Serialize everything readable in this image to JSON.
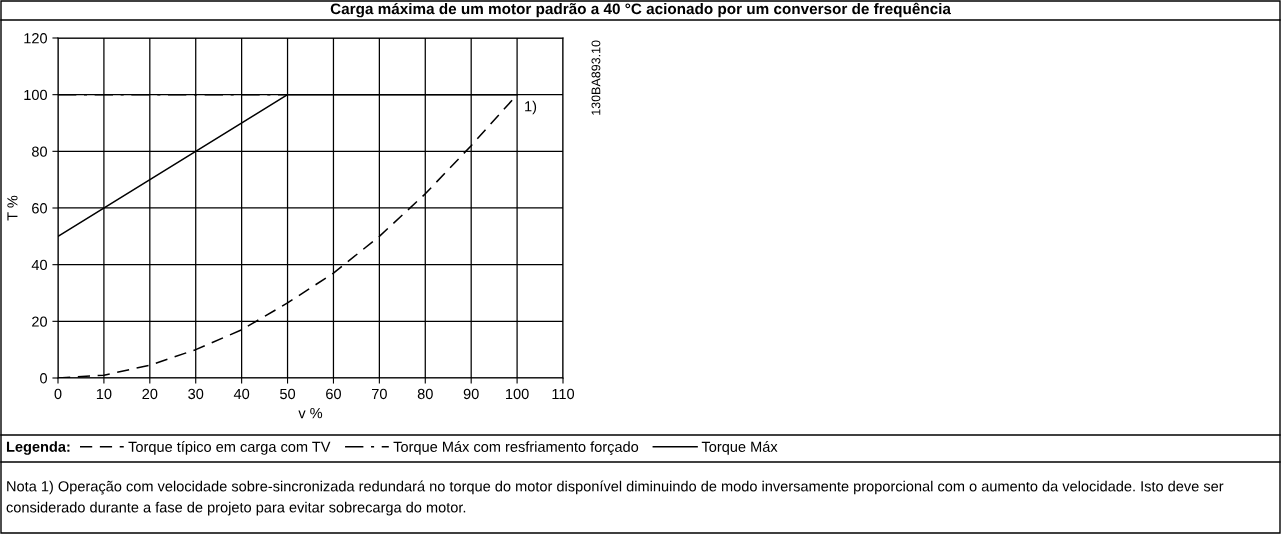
{
  "chart_data": {
    "type": "line",
    "title": "Carga máxima de um motor padrão a 40 °C acionado por um conversor de frequência",
    "xlabel": "v %",
    "ylabel": "T %",
    "legend_title": "Legenda:",
    "series": [
      {
        "name": "Torque típico em carga com TV",
        "color": "#000000",
        "line_style": "dashed",
        "x": [
          0,
          10,
          20,
          30,
          40,
          50,
          60,
          70,
          80,
          90,
          100
        ],
        "values": [
          0,
          1,
          4.5,
          10,
          17,
          26.5,
          37,
          50,
          65,
          82,
          100
        ]
      },
      {
        "name": "Torque Máx com resfriamento forçado",
        "color": "#000000",
        "line_style": "dashdot",
        "x": [
          0,
          50
        ],
        "values": [
          100,
          100
        ]
      },
      {
        "name": "Torque Máx",
        "color": "#000000",
        "line_style": "solid",
        "x": [
          0,
          50,
          100
        ],
        "values": [
          50,
          100,
          100
        ]
      }
    ],
    "xlim": [
      0,
      110
    ],
    "xticks": [
      0,
      10,
      20,
      30,
      40,
      50,
      60,
      70,
      80,
      90,
      100,
      110
    ],
    "ylim": [
      0,
      120
    ],
    "yticks": [
      0,
      20,
      40,
      60,
      80,
      100,
      120
    ],
    "grid": true,
    "legend": "bottom",
    "marker": "none",
    "annotations": [
      {
        "text": "1)",
        "x": 100,
        "y": 100
      },
      "130BA893.10",
      "Nota 1) Operação com velocidade sobre-sincronizada redundará no torque do motor disponível diminuindo de modo inversamente proporcional com o aumento da velocidade. Isto deve ser considerado durante a fase de projeto para evitar sobrecarga do motor."
    ]
  }
}
